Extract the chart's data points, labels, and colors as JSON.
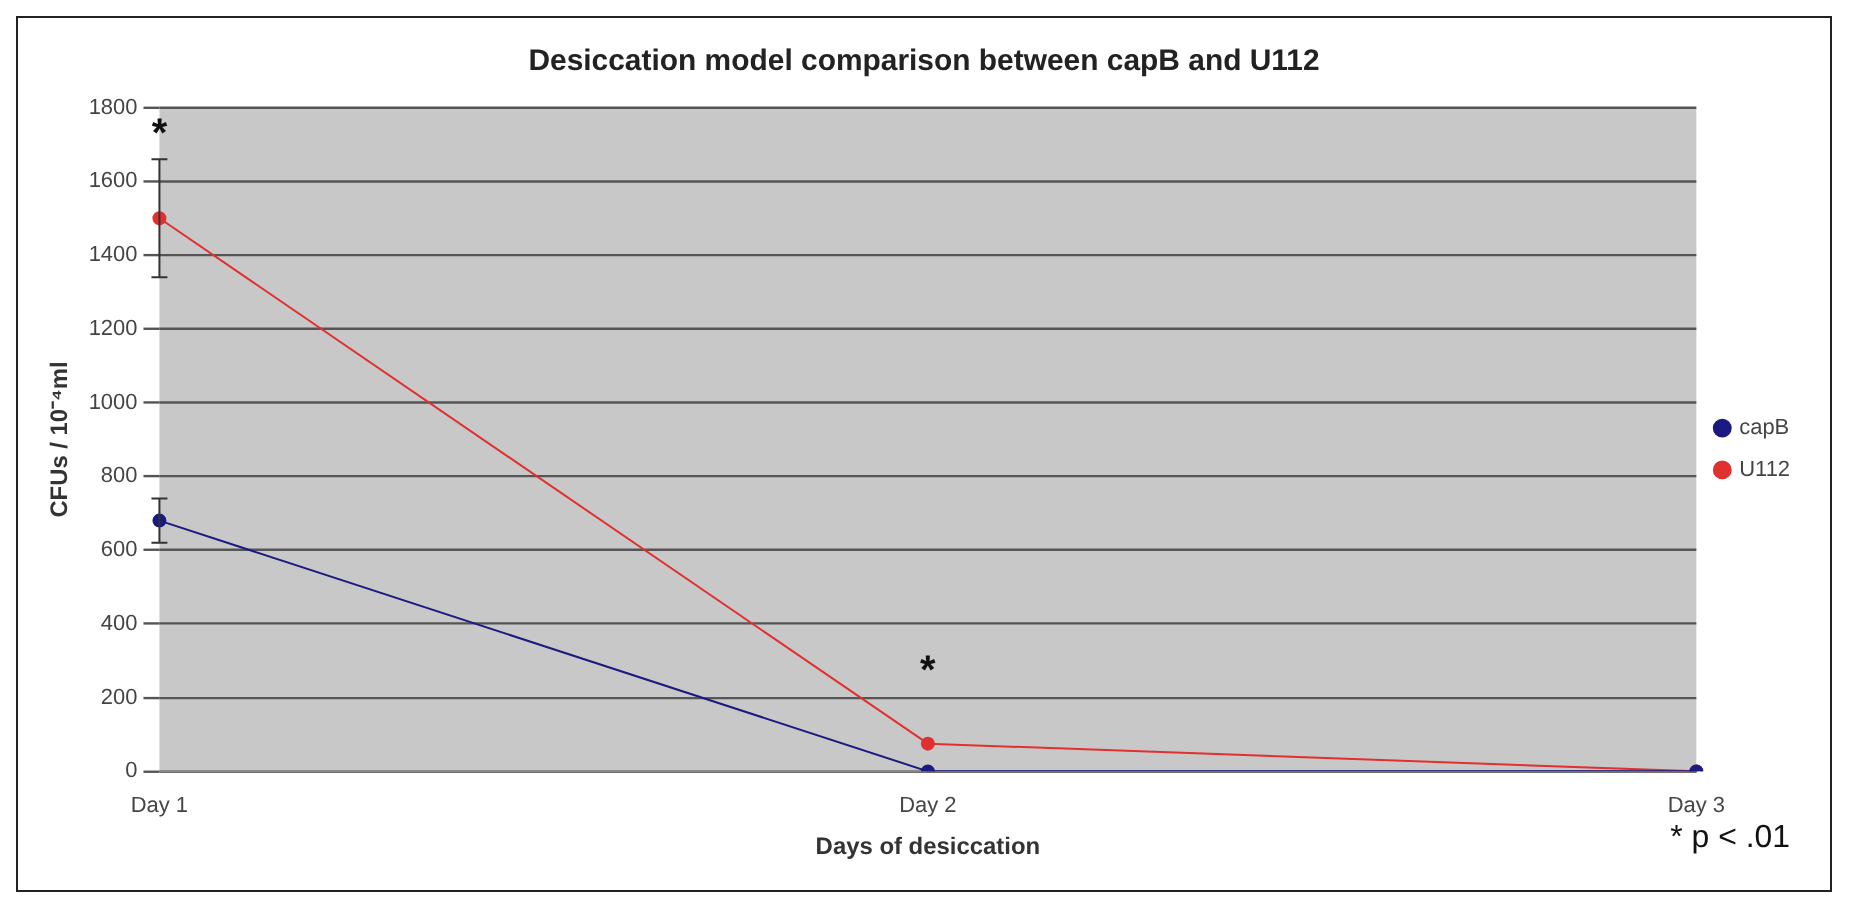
{
  "chart_data": {
    "type": "line",
    "title": "Desiccation model comparison between capB and U112",
    "xlabel": "Days of desiccation",
    "ylabel": "CFUs / 10⁻⁴ml",
    "categories": [
      "Day 1",
      "Day 2",
      "Day 3"
    ],
    "series": [
      {
        "name": "capB",
        "color": "#1a1a80",
        "values": [
          680,
          0,
          0
        ],
        "errors": [
          60,
          null,
          null
        ]
      },
      {
        "name": "U112",
        "color": "#e03030",
        "values": [
          1500,
          75,
          0
        ],
        "errors": [
          160,
          null,
          null
        ]
      }
    ],
    "ylim": [
      0,
      1800
    ],
    "yticks": [
      0,
      200,
      400,
      600,
      800,
      1000,
      1200,
      1400,
      1600,
      1800
    ],
    "grid": "y",
    "legend": "right",
    "marker": "circle",
    "line_style": "solid",
    "annotations": [
      {
        "text": "*",
        "x": "Day 1",
        "y": 1500
      },
      {
        "text": "*",
        "x": "Day 2",
        "y": 75
      },
      "* p < .01"
    ]
  }
}
